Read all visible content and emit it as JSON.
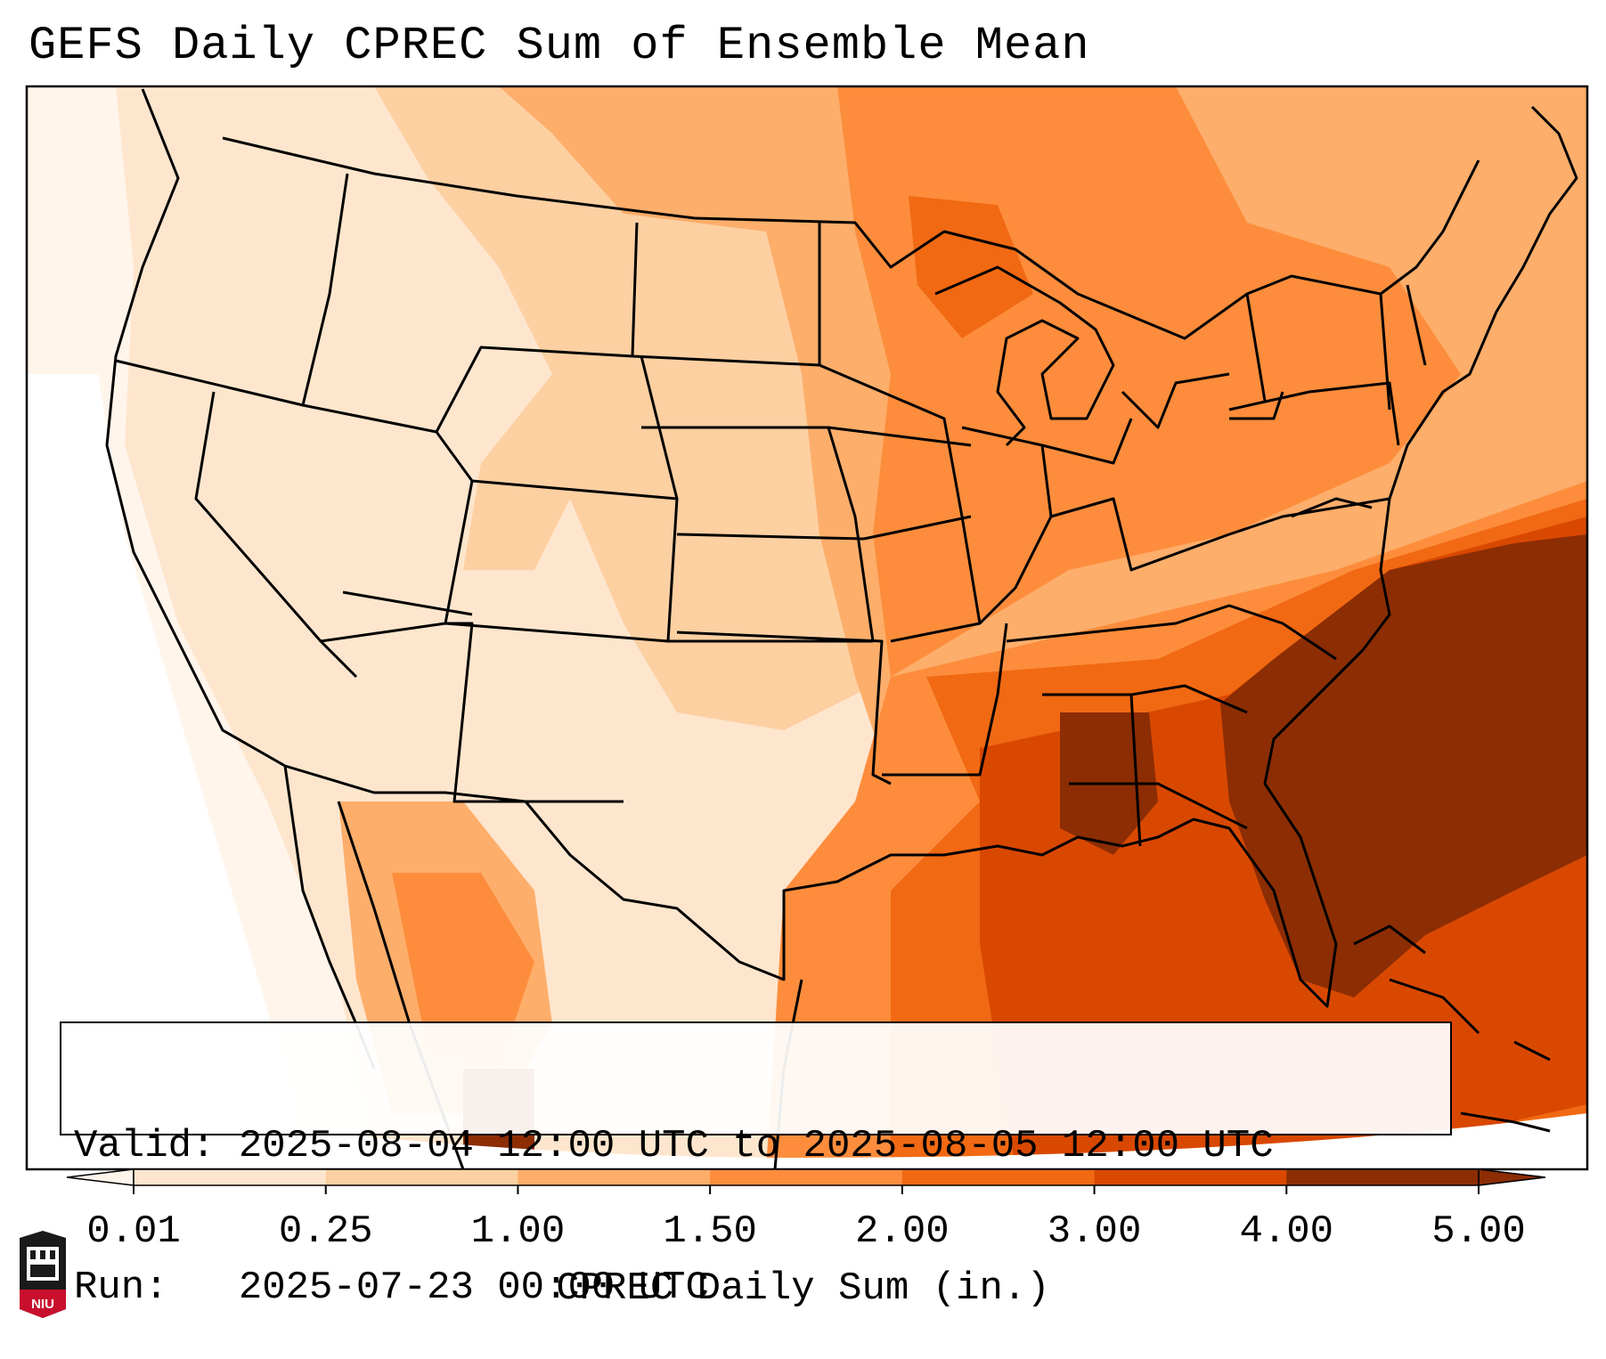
{
  "title": "GEFS Daily CPREC Sum of Ensemble Mean",
  "info": {
    "valid_line": "Valid: 2025-08-04 12:00 UTC to 2025-08-05 12:00 UTC",
    "run_line": "Run:   2025-07-23 00:00 UTC"
  },
  "colorbar": {
    "label": "CPREC Daily Sum (in.)",
    "ticks": [
      "0.01",
      "0.25",
      "1.00",
      "1.50",
      "2.00",
      "3.00",
      "4.00",
      "5.00"
    ],
    "colors": [
      "#fff5eb",
      "#fee6ce",
      "#fdd0a2",
      "#fdae6b",
      "#fd8d3c",
      "#f16913",
      "#d94801",
      "#8c2d04"
    ],
    "extend": "both"
  },
  "logo": {
    "text": "NIU",
    "icon": "niu-tower-logo-icon"
  },
  "colors": {
    "accent_dark": "#8c2d04",
    "logo_red": "#c8102e"
  }
}
